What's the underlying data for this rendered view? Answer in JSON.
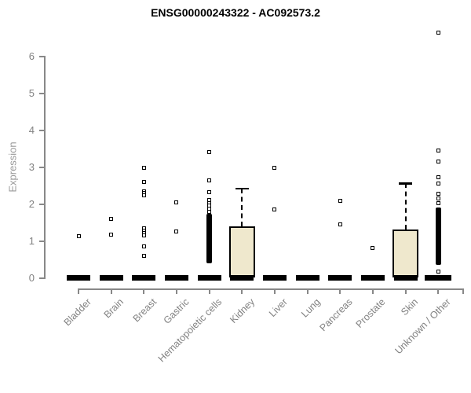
{
  "chart_data": {
    "type": "boxplot",
    "title": "ENSG00000243322 - AC092573.2",
    "ylabel": "Expression",
    "xlabel": "",
    "ylim": [
      0,
      6.8
    ],
    "yticks": [
      0,
      1,
      2,
      3,
      4,
      5,
      6
    ],
    "grid": false,
    "legend": "none",
    "categories": [
      "Bladder",
      "Brain",
      "Breast",
      "Gastric",
      "Hematopoietic cells",
      "Kidney",
      "Liver",
      "Lung",
      "Pancreas",
      "Prostate",
      "Skin",
      "Unknown / Other"
    ],
    "series": [
      {
        "category": "Bladder",
        "zero_cluster": true,
        "points": [
          1.13
        ]
      },
      {
        "category": "Brain",
        "zero_cluster": true,
        "points": [
          1.6,
          1.19
        ]
      },
      {
        "category": "Breast",
        "zero_cluster": true,
        "points": [
          2.98,
          2.6,
          2.36,
          2.3,
          2.24,
          1.36,
          1.29,
          1.22,
          1.16,
          0.87,
          0.6
        ]
      },
      {
        "category": "Gastric",
        "zero_cluster": true,
        "points": [
          2.06,
          1.26
        ]
      },
      {
        "category": "Hematopoietic cells",
        "zero_cluster": true,
        "points": [
          3.42,
          2.64,
          2.34,
          2.12,
          2.04,
          1.96,
          1.88,
          1.8
        ],
        "dense_strip": [
          0.4,
          1.74
        ]
      },
      {
        "category": "Kidney",
        "zero_cluster": true,
        "points": [],
        "box": {
          "bottom": 0,
          "median": 0.02,
          "top": 1.4,
          "upper_whisker": 2.43
        }
      },
      {
        "category": "Liver",
        "zero_cluster": true,
        "points": [
          3.0,
          1.87
        ]
      },
      {
        "category": "Lung",
        "zero_cluster": true,
        "points": []
      },
      {
        "category": "Pancreas",
        "zero_cluster": true,
        "points": [
          2.1,
          1.45
        ]
      },
      {
        "category": "Prostate",
        "zero_cluster": true,
        "points": [
          0.81
        ]
      },
      {
        "category": "Skin",
        "zero_cluster": true,
        "points": [],
        "box": {
          "bottom": 0,
          "median": 0.02,
          "top": 1.32,
          "upper_whisker": 2.57
        }
      },
      {
        "category": "Unknown / Other",
        "zero_cluster": true,
        "points": [
          6.64,
          3.45,
          3.17,
          2.74,
          2.57,
          2.28,
          2.17,
          2.04,
          0.19
        ],
        "dense_strip": [
          0.36,
          1.92
        ]
      }
    ],
    "colors": {
      "box_fill": "#efe8cd",
      "box_border": "#000000",
      "point": "#000000",
      "zero_cluster": "#000000",
      "axis": "#888888",
      "tick_label": "#828282",
      "title": "#000000",
      "ylabel": "#999999",
      "background": "#ffffff"
    }
  }
}
